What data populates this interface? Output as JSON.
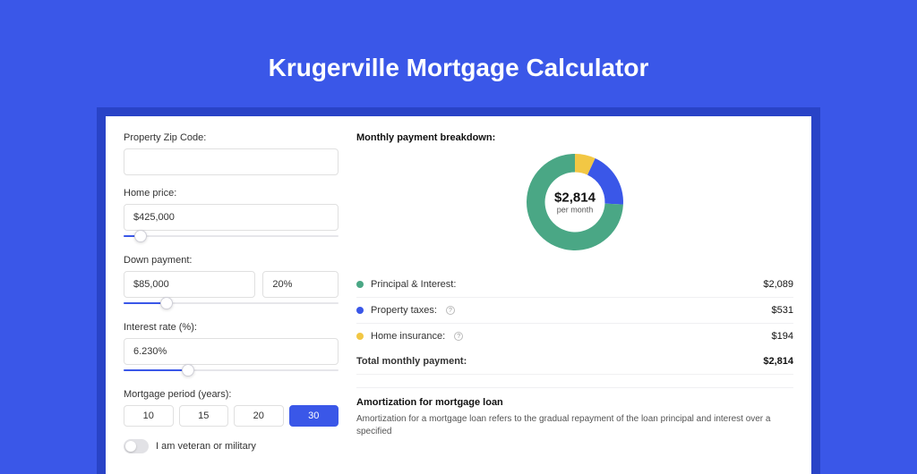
{
  "page": {
    "title": "Krugerville Mortgage Calculator",
    "background_color": "#3a57e8",
    "band_color": "#2943c7",
    "card_color": "#ffffff"
  },
  "form": {
    "zip_label": "Property Zip Code:",
    "zip_value": "",
    "home_price_label": "Home price:",
    "home_price_value": "$425,000",
    "home_price_slider_pct": 8,
    "down_payment_label": "Down payment:",
    "down_payment_value": "$85,000",
    "down_payment_pct": "20%",
    "down_payment_slider_pct": 20,
    "interest_label": "Interest rate (%):",
    "interest_value": "6.230%",
    "interest_slider_pct": 30,
    "period_label": "Mortgage period (years):",
    "periods": [
      {
        "label": "10",
        "selected": false
      },
      {
        "label": "15",
        "selected": false
      },
      {
        "label": "20",
        "selected": false
      },
      {
        "label": "30",
        "selected": true
      }
    ],
    "veteran_label": "I am veteran or military",
    "veteran_on": false
  },
  "breakdown": {
    "heading": "Monthly payment breakdown:",
    "donut": {
      "amount": "$2,814",
      "sub": "per month",
      "slices": [
        {
          "name": "home_insurance",
          "value": 194,
          "color": "#f2c744"
        },
        {
          "name": "property_taxes",
          "value": 531,
          "color": "#3a57e8"
        },
        {
          "name": "principal_interest",
          "value": 2089,
          "color": "#4aa785"
        }
      ],
      "inner_radius_pct": 62
    },
    "items": [
      {
        "dot_color": "#4aa785",
        "label": "Principal & Interest:",
        "value": "$2,089",
        "help": false
      },
      {
        "dot_color": "#3a57e8",
        "label": "Property taxes:",
        "value": "$531",
        "help": true
      },
      {
        "dot_color": "#f2c744",
        "label": "Home insurance:",
        "value": "$194",
        "help": true
      }
    ],
    "total_label": "Total monthly payment:",
    "total_value": "$2,814"
  },
  "amortization": {
    "heading": "Amortization for mortgage loan",
    "text": "Amortization for a mortgage loan refers to the gradual repayment of the loan principal and interest over a specified"
  }
}
